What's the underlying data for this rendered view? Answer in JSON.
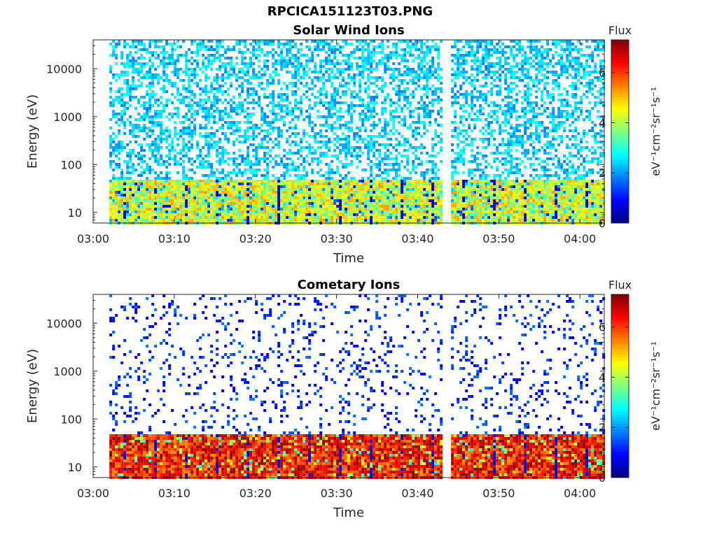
{
  "figure_title": "RPCICA151123T03.PNG",
  "chart_data": [
    {
      "type": "heatmap",
      "title": "Solar Wind Ions",
      "xlabel": "Time",
      "ylabel": "Energy (eV)",
      "x_ticks": [
        "03:00",
        "03:10",
        "03:20",
        "03:30",
        "03:40",
        "03:50",
        "04:00"
      ],
      "xlim": [
        "03:00",
        "04:03"
      ],
      "data_start": "03:02",
      "y_scale": "log",
      "y_ticks": [
        10,
        100,
        1000,
        10000
      ],
      "ylim": [
        6,
        40000
      ],
      "data_gap": [
        "03:43",
        "03:44"
      ],
      "low_energy_band_ev": [
        6,
        45
      ],
      "low_energy_band_level": 4.3,
      "background_level": 2.4,
      "colorbar": {
        "title": "Flux",
        "label": "eV⁻¹cm⁻²sr⁻¹s⁻¹",
        "range": [
          0,
          7.3
        ],
        "ticks": [
          0,
          2,
          4,
          6
        ],
        "colormap": "jet"
      },
      "grid": false
    },
    {
      "type": "heatmap",
      "title": "Cometary Ions",
      "xlabel": "Time",
      "ylabel": "Energy (eV)",
      "x_ticks": [
        "03:00",
        "03:10",
        "03:20",
        "03:30",
        "03:40",
        "03:50",
        "04:00"
      ],
      "xlim": [
        "03:00",
        "04:03"
      ],
      "data_start": "03:02",
      "y_scale": "log",
      "y_ticks": [
        10,
        100,
        1000,
        10000
      ],
      "ylim": [
        6,
        40000
      ],
      "data_gap": [
        "03:43",
        "03:44"
      ],
      "low_energy_band_ev": [
        6,
        45
      ],
      "low_energy_band_level": 6.3,
      "background_level": 1.2,
      "colorbar": {
        "title": "Flux",
        "label": "eV⁻¹cm⁻²sr⁻¹s⁻¹",
        "range": [
          0,
          7.3
        ],
        "ticks": [
          0,
          2,
          4,
          6
        ],
        "colormap": "jet"
      },
      "grid": false
    }
  ]
}
